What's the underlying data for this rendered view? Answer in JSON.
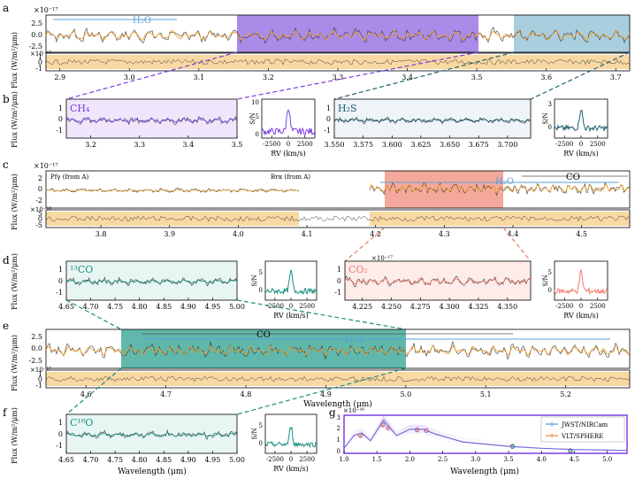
{
  "figure": {
    "panel_letters": [
      "a",
      "b",
      "c",
      "d",
      "e",
      "f",
      "g"
    ],
    "scale_10_17": "×10⁻¹⁷",
    "scale_10_18": "×10⁻¹⁸",
    "scale_10_16": "×10⁻¹⁶",
    "ylabel_flux": "Flux (W/m²/μm)",
    "ylabel_sn": "S/N",
    "xlabel_wavelength": "Wavelength (μm)",
    "xlabel_rv": "RV (km/s)"
  },
  "colors": {
    "data": "#3a3a3a",
    "model": "#f0a030",
    "residual_band": "#f7c97a",
    "purple": "#7b3fe4",
    "purple_fill": "#efe6fb",
    "purple_band": "#a98be8",
    "teal_dark": "#1f5f72",
    "teal_fill": "#eef4f7",
    "teal_band": "#a9cfdf",
    "green": "#1a8f80",
    "green_fill": "#e8f6f3",
    "green_band": "#5fb8ab",
    "salmon": "#f07a6a",
    "salmon_fill": "#fdecea",
    "salmon_band": "#f4a89c",
    "blue": "#5aa0d8",
    "nircam": "#4f9bd9",
    "sphere": "#f08a3c"
  },
  "chart_data": [
    {
      "panel": "a",
      "type": "line",
      "xlim": [
        2.88,
        3.72
      ],
      "xticks": [
        "2.9",
        "3.0",
        "3.1",
        "3.2",
        "3.3",
        "3.4",
        "3.5",
        "3.6",
        "3.7"
      ],
      "yticks_main": [
        "2.5",
        "0.0",
        "-2.5"
      ],
      "yticks_resid": [
        "1",
        "0",
        "-1"
      ],
      "highlight_regions": [
        {
          "from": 3.15,
          "to": 3.5,
          "color": "purple"
        },
        {
          "from": 3.55,
          "to": 3.72,
          "color": "teal"
        }
      ],
      "labels": [
        "H₂O"
      ]
    },
    {
      "panel": "b",
      "type": "line",
      "subpanels": [
        {
          "label": "CH₄",
          "xlim": [
            3.15,
            3.5
          ],
          "xticks": [
            "3.2",
            "3.3",
            "3.4",
            "3.5"
          ],
          "yticks": [
            "1",
            "0",
            "-1"
          ]
        },
        {
          "label": "S/N",
          "xlim": [
            -4000,
            4000
          ],
          "xticks": [
            "-2500",
            "0",
            "2500"
          ],
          "yticks": [
            "10",
            "5",
            "0"
          ]
        },
        {
          "label": "H₂S",
          "xlim": [
            3.55,
            3.72
          ],
          "xticks": [
            "3.550",
            "3.575",
            "3.600",
            "3.625",
            "3.650",
            "3.675",
            "3.700"
          ],
          "yticks": [
            "1",
            "0",
            "-1"
          ]
        },
        {
          "label": "S/N",
          "xlim": [
            -4000,
            4000
          ],
          "xticks": [
            "-2500",
            "0",
            "2500"
          ],
          "yticks": [
            "3",
            "0"
          ]
        }
      ]
    },
    {
      "panel": "c",
      "type": "line",
      "xlim": [
        3.72,
        4.57
      ],
      "xticks": [
        "3.8",
        "3.9",
        "4.0",
        "4.1",
        "4.2",
        "4.3",
        "4.4",
        "4.5"
      ],
      "yticks_main": [
        "2",
        "0",
        "-2"
      ],
      "yticks_resid": [
        "5",
        "0",
        "-5"
      ],
      "highlight_regions": [
        {
          "from": 4.21,
          "to": 4.37,
          "color": "salmon"
        }
      ],
      "annotations": [
        "Pfγ (from A)",
        "Brα (from A)",
        "H₂O",
        "CO"
      ]
    },
    {
      "panel": "d",
      "type": "line",
      "subpanels": [
        {
          "label": "¹³CO",
          "xlim": [
            4.65,
            5.0
          ],
          "xticks": [
            "4.65",
            "4.70",
            "4.75",
            "4.80",
            "4.85",
            "4.90",
            "4.95",
            "5.00"
          ],
          "yticks": [
            "1",
            "0",
            "-1"
          ]
        },
        {
          "label": "S/N",
          "xlim": [
            -4000,
            4000
          ],
          "xticks": [
            "-2500",
            "0",
            "2500"
          ],
          "yticks": [
            "5",
            "0"
          ]
        },
        {
          "label": "CO₂",
          "xlim": [
            4.21,
            4.37
          ],
          "xticks": [
            "4.225",
            "4.250",
            "4.275",
            "4.300",
            "4.325",
            "4.350"
          ],
          "yticks": [
            "1",
            "0",
            "-1"
          ]
        },
        {
          "label": "S/N",
          "xlim": [
            -4000,
            4000
          ],
          "xticks": [
            "-2500",
            "0",
            "2500"
          ],
          "yticks": [
            "5",
            "0"
          ]
        }
      ]
    },
    {
      "panel": "e",
      "type": "line",
      "xlim": [
        4.55,
        5.28
      ],
      "xticks": [
        "4.6",
        "4.7",
        "4.8",
        "4.9",
        "5.0",
        "5.1",
        "5.2"
      ],
      "yticks_main": [
        "2.5",
        "0.0",
        "-2.5"
      ],
      "yticks_resid": [
        "1",
        "0",
        "-1"
      ],
      "highlight_regions": [
        {
          "from": 4.65,
          "to": 5.0,
          "color": "green"
        }
      ],
      "annotations": [
        "CO",
        "H₂O"
      ]
    },
    {
      "panel": "f",
      "type": "line",
      "subpanels": [
        {
          "label": "C¹⁸O",
          "xlim": [
            4.65,
            5.0
          ],
          "xticks": [
            "4.65",
            "4.70",
            "4.75",
            "4.80",
            "4.85",
            "4.90",
            "4.95",
            "5.00"
          ],
          "yticks": [
            "1",
            "0",
            "-1"
          ]
        },
        {
          "label": "S/N",
          "xlim": [
            -4000,
            4000
          ],
          "xticks": [
            "-2500",
            "0",
            "2500"
          ],
          "yticks": [
            "5",
            "0"
          ]
        }
      ]
    },
    {
      "panel": "g",
      "type": "scatter",
      "xlim": [
        1.0,
        5.3
      ],
      "ylim": [
        0,
        3
      ],
      "xticks": [
        "1.0",
        "1.5",
        "2.0",
        "2.5",
        "3.0",
        "3.5",
        "4.0",
        "4.5",
        "5.0"
      ],
      "yticks": [
        "3",
        "2",
        "1",
        "0"
      ],
      "series": [
        {
          "name": "JWST/NIRCam",
          "x": [
            3.56,
            4.44
          ],
          "y": [
            0.55,
            0.2
          ]
        },
        {
          "name": "VLT/SPHERE",
          "x": [
            1.25,
            1.59,
            1.67,
            2.11,
            2.25
          ],
          "y": [
            1.4,
            2.25,
            2.0,
            1.85,
            1.8
          ]
        }
      ],
      "model_curve": {
        "x": [
          1.0,
          1.15,
          1.27,
          1.4,
          1.6,
          1.8,
          2.0,
          2.2,
          2.4,
          2.8,
          3.2,
          3.5,
          4.0,
          4.5,
          5.0,
          5.3
        ],
        "y": [
          0.4,
          1.4,
          1.6,
          1.0,
          2.6,
          1.4,
          1.9,
          1.9,
          1.5,
          0.9,
          0.7,
          0.55,
          0.4,
          0.3,
          0.25,
          0.22
        ]
      }
    }
  ]
}
